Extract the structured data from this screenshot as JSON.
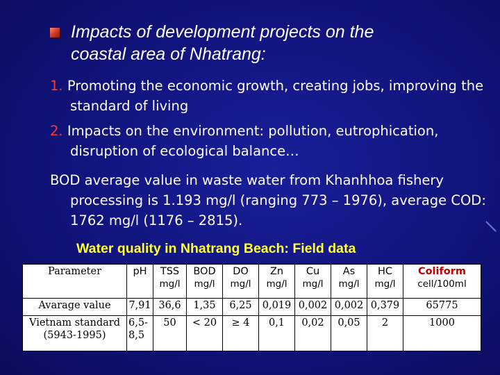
{
  "slide": {
    "heading_line1": "Impacts of development projects on the",
    "heading_line2": "coastal area of Nhatrang:",
    "points": [
      {
        "num": "1.",
        "text": "Promoting the economic growth, creating jobs, improving the standard of living"
      },
      {
        "num": "2.",
        "text": "Impacts on the environment: pollution, eutrophication, disruption of ecological balance…"
      }
    ],
    "bod_text": "BOD average value in waste water from Khanhhoa fishery processing is 1.193 mg/l (ranging 773 – 1976), average COD: 1762 mg/l (1176 – 2815).",
    "table_title": "Water quality in Nhatrang Beach: Field data"
  },
  "table": {
    "header": {
      "parameter": "Parameter",
      "columns": [
        {
          "name": "pH",
          "unit": ""
        },
        {
          "name": "TSS",
          "unit": "mg/l"
        },
        {
          "name": "BOD",
          "unit": "mg/l"
        },
        {
          "name": "DO",
          "unit": "mg/l"
        },
        {
          "name": "Zn",
          "unit": "mg/l"
        },
        {
          "name": "Cu",
          "unit": "mg/l"
        },
        {
          "name": "As",
          "unit": "mg/l"
        },
        {
          "name": "HC",
          "unit": "mg/l"
        },
        {
          "name": "Coliform",
          "unit": "cell/100ml"
        }
      ]
    },
    "rows": [
      {
        "label_line1": "Avarage value",
        "label_line2": "",
        "values": [
          "7,91",
          "36,6",
          "1,35",
          "6,25",
          "0,019",
          "0,002",
          "0,002",
          "0,379",
          "65775"
        ]
      },
      {
        "label_line1": "Vietnam standard",
        "label_line2": "(5943-1995)",
        "values": [
          "6,5-\n8,5",
          "50",
          "< 20",
          "≥ 4",
          "0,1",
          "0,02",
          "0,05",
          "2",
          "1000"
        ]
      }
    ]
  },
  "colors": {
    "background": "#10137a",
    "heading_text": "#ffffff",
    "number_red": "#ff3a30",
    "table_title_yellow": "#ffff33",
    "coliform_red": "#c00000"
  }
}
